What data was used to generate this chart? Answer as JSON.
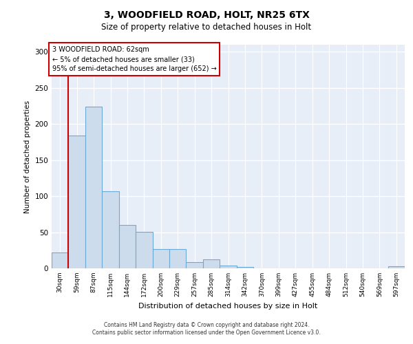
{
  "title1": "3, WOODFIELD ROAD, HOLT, NR25 6TX",
  "title2": "Size of property relative to detached houses in Holt",
  "xlabel": "Distribution of detached houses by size in Holt",
  "ylabel": "Number of detached properties",
  "bar_labels": [
    "30sqm",
    "59sqm",
    "87sqm",
    "115sqm",
    "144sqm",
    "172sqm",
    "200sqm",
    "229sqm",
    "257sqm",
    "285sqm",
    "314sqm",
    "342sqm",
    "370sqm",
    "399sqm",
    "427sqm",
    "455sqm",
    "484sqm",
    "512sqm",
    "540sqm",
    "569sqm",
    "597sqm"
  ],
  "bar_values": [
    22,
    184,
    224,
    107,
    60,
    51,
    27,
    27,
    9,
    12,
    4,
    2,
    0,
    0,
    0,
    0,
    0,
    0,
    0,
    0,
    3
  ],
  "bar_color": "#ccdcec",
  "bar_edge_color": "#6aaad4",
  "annotation_box_text": "3 WOODFIELD ROAD: 62sqm\n← 5% of detached houses are smaller (33)\n95% of semi-detached houses are larger (652) →",
  "box_facecolor": "white",
  "box_edgecolor": "#cc0000",
  "vline_color": "#cc0000",
  "ylim": [
    0,
    310
  ],
  "yticks": [
    0,
    50,
    100,
    150,
    200,
    250,
    300
  ],
  "axes_facecolor": "#e8eef8",
  "grid_color": "white",
  "footer1": "Contains HM Land Registry data © Crown copyright and database right 2024.",
  "footer2": "Contains public sector information licensed under the Open Government Licence v3.0.",
  "bin_width": 28.5,
  "vline_x_bin": 1
}
